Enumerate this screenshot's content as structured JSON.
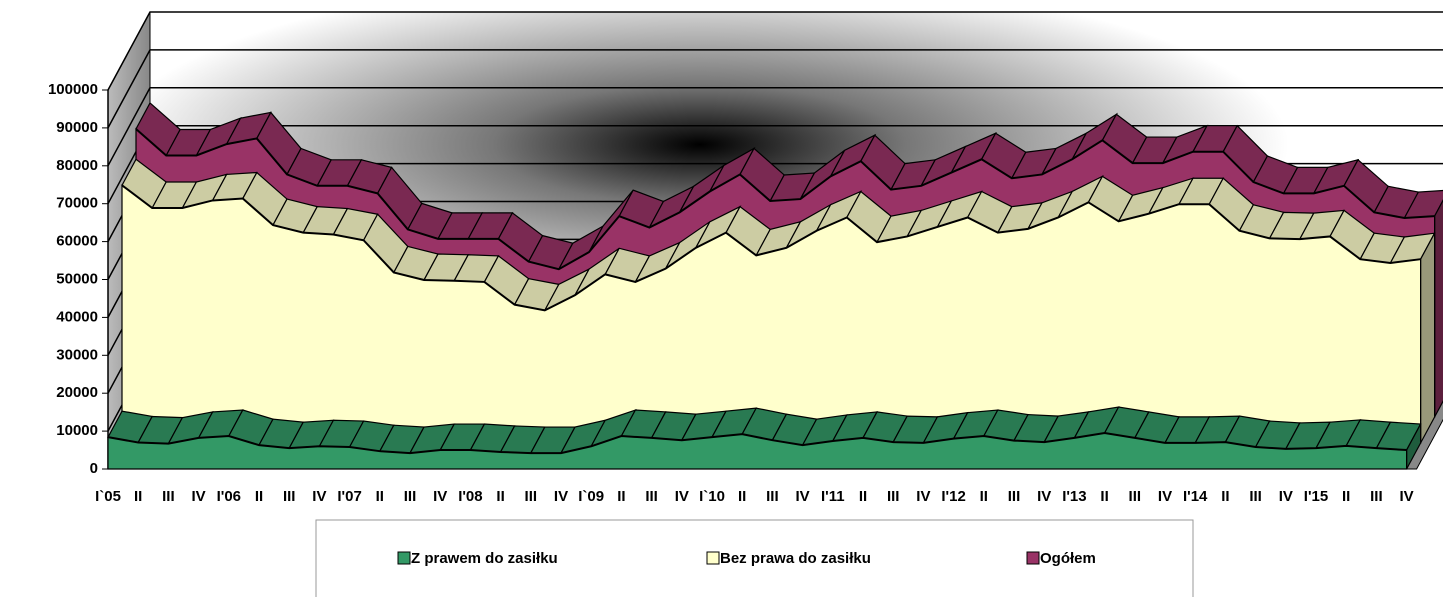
{
  "chart_data": {
    "type": "area3d",
    "categories": [
      "I`05",
      "II",
      "III",
      "IV",
      "I'06",
      "II",
      "III",
      "IV",
      "I'07",
      "II",
      "III",
      "IV",
      "I'08",
      "II",
      "III",
      "IV",
      "I`09",
      "II",
      "III",
      "IV",
      "I`10",
      "II",
      "III",
      "IV",
      "I'11",
      "II",
      "III",
      "IV",
      "I'12",
      "II",
      "III",
      "IV",
      "I'13",
      "II",
      "III",
      "IV",
      "I'14",
      "II",
      "III",
      "IV",
      "I'15",
      "II",
      "III",
      "IV"
    ],
    "series": [
      {
        "name": "Z prawem do zasiłku",
        "color": "#339966",
        "values": [
          8400,
          7000,
          6700,
          8200,
          8700,
          6300,
          5500,
          6000,
          5800,
          4700,
          4200,
          5000,
          5000,
          4500,
          4200,
          4200,
          6000,
          8700,
          8200,
          7600,
          8400,
          9200,
          7600,
          6300,
          7400,
          8200,
          7100,
          6900,
          8000,
          8700,
          7500,
          7100,
          8200,
          9500,
          8200,
          6900,
          6900,
          7100,
          5800,
          5300,
          5500,
          6100,
          5500,
          5000
        ]
      },
      {
        "name": "Bez prawa do zasiłku",
        "color": "#ffffcc",
        "values": [
          68000,
          62000,
          62000,
          64000,
          64500,
          57500,
          55500,
          55000,
          53500,
          45000,
          43000,
          42800,
          42500,
          36500,
          35000,
          39000,
          44500,
          42500,
          46000,
          51500,
          55500,
          49500,
          51500,
          56000,
          59500,
          53000,
          54500,
          57000,
          59500,
          55500,
          56500,
          59500,
          63500,
          58500,
          60500,
          63000,
          63000,
          56000,
          54000,
          53800,
          54500,
          48500,
          47500,
          48500
        ]
      },
      {
        "name": "Ogółem",
        "color": "#993366",
        "values": [
          76000,
          69000,
          69000,
          72000,
          73500,
          64000,
          61000,
          61000,
          59000,
          49500,
          47000,
          47000,
          47000,
          41000,
          39000,
          43500,
          53000,
          50000,
          54000,
          59500,
          64000,
          57000,
          57500,
          63500,
          67500,
          60000,
          61000,
          64500,
          68000,
          63000,
          64000,
          68000,
          73000,
          67000,
          67000,
          70000,
          70000,
          62000,
          59000,
          59000,
          61000,
          54000,
          52500,
          53000
        ]
      }
    ],
    "ylim": [
      0,
      100000
    ],
    "yticks": [
      0,
      10000,
      20000,
      30000,
      40000,
      50000,
      60000,
      70000,
      80000,
      90000,
      100000
    ],
    "grid": true
  }
}
